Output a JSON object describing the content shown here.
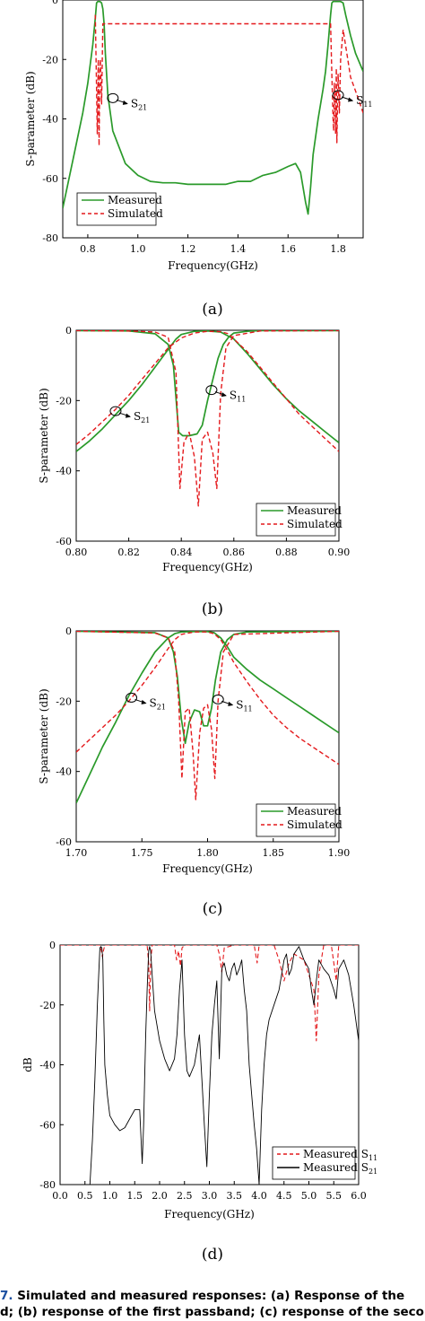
{
  "colors": {
    "measured": "#2a9a2a",
    "simulated": "#e4191c",
    "measured_d_s21": "#000000"
  },
  "panels": {
    "a": {
      "label": "(a)"
    },
    "b": {
      "label": "(b)"
    },
    "c": {
      "label": "(c)"
    },
    "d": {
      "label": "(d)"
    }
  },
  "caption": {
    "line1_num": "7.",
    "line1_text": " Simulated and measured responses: (a) Response of the",
    "line2": "d; (b) response of the first passband; (c) response of the secon"
  },
  "chart_data": [
    {
      "type": "line",
      "title": "",
      "xlabel": "Frequency(GHz)",
      "ylabel": "S-parameter (dB)",
      "xlim": [
        0.7,
        1.9
      ],
      "ylim": [
        -80,
        0
      ],
      "xticks": [
        "0.8",
        "1.0",
        "1.2",
        "1.4",
        "1.6",
        "1.8"
      ],
      "xtick_values": [
        0.8,
        1.0,
        1.2,
        1.4,
        1.6,
        1.8
      ],
      "yticks": [
        "0",
        "-20",
        "-40",
        "-60",
        "-80"
      ],
      "ytick_values": [
        0,
        -20,
        -40,
        -60,
        -80
      ],
      "legend": {
        "position": "bottom-left",
        "entries": [
          "Measured",
          "Simulated"
        ]
      },
      "annotations": [
        {
          "text": "S",
          "sub": "21",
          "x": 0.9,
          "y": -33
        },
        {
          "text": "S",
          "sub": "11",
          "x": 1.8,
          "y": -32
        }
      ],
      "series": [
        {
          "name": "Measured",
          "x": [
            0.7,
            0.72,
            0.75,
            0.78,
            0.8,
            0.82,
            0.83,
            0.835,
            0.84,
            0.845,
            0.85,
            0.855,
            0.86,
            0.865,
            0.87,
            0.88,
            0.9,
            0.95,
            1.0,
            1.05,
            1.1,
            1.15,
            1.2,
            1.25,
            1.3,
            1.35,
            1.4,
            1.45,
            1.5,
            1.55,
            1.6,
            1.63,
            1.65,
            1.67,
            1.68,
            1.69,
            1.7,
            1.72,
            1.74,
            1.75,
            1.76,
            1.77,
            1.775,
            1.78,
            1.79,
            1.8,
            1.805,
            1.81,
            1.82,
            1.83,
            1.85,
            1.87,
            1.9
          ],
          "y": [
            -70,
            -62,
            -50,
            -38,
            -28,
            -15,
            -6,
            -1,
            -0.5,
            -0.5,
            -0.6,
            -1,
            -3,
            -8,
            -18,
            -32,
            -44,
            -55,
            -59,
            -61,
            -61.5,
            -61.5,
            -62,
            -62,
            -62,
            -62,
            -61,
            -61,
            -59,
            -58,
            -56,
            -55,
            -58,
            -68,
            -72,
            -63,
            -52,
            -40,
            -30,
            -24,
            -15,
            -5,
            -1,
            -0.5,
            -0.5,
            -0.5,
            -0.5,
            -0.5,
            -1,
            -5,
            -12,
            -18,
            -24
          ]
        },
        {
          "name": "Simulated",
          "x": [
            0.83,
            0.835,
            0.838,
            0.84,
            0.842,
            0.845,
            0.848,
            0.85,
            0.855,
            0.86,
            1.77,
            1.775,
            1.78,
            1.782,
            1.785,
            1.79,
            1.793,
            1.795,
            1.8,
            1.805,
            1.81,
            1.82,
            1.85,
            1.88,
            1.9
          ],
          "y": [
            -5,
            -30,
            -45,
            -30,
            -20,
            -49,
            -25,
            -20,
            -35,
            -8,
            -8,
            -25,
            -40,
            -44,
            -28,
            -45,
            -23,
            -48,
            -25,
            -38,
            -20,
            -10,
            -26,
            -33,
            -38
          ]
        }
      ]
    },
    {
      "type": "line",
      "title": "",
      "xlabel": "Frequency(GHz)",
      "ylabel": "S-parameter (dB)",
      "xlim": [
        0.8,
        0.9
      ],
      "ylim": [
        -60,
        0
      ],
      "xticks": [
        "0.80",
        "0.82",
        "0.84",
        "0.86",
        "0.88",
        "0.90"
      ],
      "xtick_values": [
        0.8,
        0.82,
        0.84,
        0.86,
        0.88,
        0.9
      ],
      "yticks": [
        "0",
        "-20",
        "-40",
        "-60"
      ],
      "ytick_values": [
        0,
        -20,
        -40,
        -60
      ],
      "legend": {
        "position": "bottom-right",
        "entries": [
          "Measured",
          "Simulated"
        ]
      },
      "annotations": [
        {
          "text": "S",
          "sub": "21",
          "x": 0.815,
          "y": -23
        },
        {
          "text": "S",
          "sub": "11",
          "x": 0.8515,
          "y": -17
        }
      ],
      "series": [
        {
          "name": "Measured S21",
          "x": [
            0.8,
            0.805,
            0.81,
            0.815,
            0.82,
            0.825,
            0.83,
            0.835,
            0.838,
            0.84,
            0.845,
            0.85,
            0.855,
            0.86,
            0.865,
            0.87,
            0.875,
            0.88,
            0.885,
            0.89,
            0.895,
            0.9
          ],
          "y": [
            -34.5,
            -31.5,
            -28,
            -24,
            -20,
            -15.5,
            -10.5,
            -5.5,
            -2.5,
            -1.2,
            -0.3,
            -0.2,
            -0.5,
            -2.5,
            -6.5,
            -11,
            -15.5,
            -19.5,
            -23,
            -26,
            -29,
            -32
          ]
        },
        {
          "name": "Measured S11",
          "x": [
            0.8,
            0.82,
            0.83,
            0.835,
            0.837,
            0.839,
            0.8405,
            0.843,
            0.846,
            0.848,
            0.85,
            0.852,
            0.854,
            0.856,
            0.858,
            0.86,
            0.865,
            0.87,
            0.9
          ],
          "y": [
            -0.1,
            -0.2,
            -1,
            -4,
            -10,
            -29,
            -30,
            -30,
            -29.5,
            -27,
            -20,
            -14,
            -8,
            -4,
            -2,
            -0.8,
            -0.3,
            -0.1,
            -0.1
          ]
        },
        {
          "name": "Simulated S21",
          "x": [
            0.8,
            0.805,
            0.81,
            0.815,
            0.82,
            0.825,
            0.83,
            0.835,
            0.84,
            0.845,
            0.85,
            0.855,
            0.858,
            0.86,
            0.865,
            0.87,
            0.875,
            0.88,
            0.885,
            0.89,
            0.895,
            0.9
          ],
          "y": [
            -32.5,
            -29.5,
            -26,
            -22.5,
            -18.5,
            -14,
            -9.5,
            -5,
            -2.2,
            -0.8,
            -0.3,
            -0.4,
            -1,
            -2.5,
            -6,
            -10.5,
            -15,
            -19.5,
            -24,
            -27.5,
            -31,
            -34.5
          ]
        },
        {
          "name": "Simulated S11",
          "x": [
            0.8,
            0.82,
            0.83,
            0.835,
            0.838,
            0.8395,
            0.841,
            0.843,
            0.845,
            0.8465,
            0.848,
            0.85,
            0.852,
            0.8535,
            0.855,
            0.857,
            0.86,
            0.87,
            0.9
          ],
          "y": [
            -0.1,
            -0.2,
            -0.5,
            -2,
            -12,
            -45,
            -32,
            -29,
            -36,
            -50,
            -31,
            -29,
            -35,
            -45,
            -18,
            -5,
            -1.5,
            -0.2,
            -0.1
          ]
        }
      ]
    },
    {
      "type": "line",
      "title": "",
      "xlabel": "Frequency(GHz)",
      "ylabel": "S-parameter (dB)",
      "xlim": [
        1.7,
        1.9
      ],
      "ylim": [
        -60,
        0
      ],
      "xticks": [
        "1.70",
        "1.75",
        "1.80",
        "1.85",
        "1.90"
      ],
      "xtick_values": [
        1.7,
        1.75,
        1.8,
        1.85,
        1.9
      ],
      "yticks": [
        "0",
        "-20",
        "-40",
        "-60"
      ],
      "ytick_values": [
        0,
        -20,
        -40,
        -60
      ],
      "legend": {
        "position": "bottom-right",
        "entries": [
          "Measured",
          "Simulated"
        ]
      },
      "annotations": [
        {
          "text": "S",
          "sub": "21",
          "x": 1.742,
          "y": -19
        },
        {
          "text": "S",
          "sub": "11",
          "x": 1.808,
          "y": -19.5
        }
      ],
      "series": [
        {
          "name": "Measured S21",
          "x": [
            1.7,
            1.71,
            1.72,
            1.73,
            1.74,
            1.75,
            1.76,
            1.77,
            1.775,
            1.78,
            1.79,
            1.8,
            1.805,
            1.81,
            1.815,
            1.82,
            1.83,
            1.84,
            1.85,
            1.86,
            1.87,
            1.88,
            1.89,
            1.9
          ],
          "y": [
            -49,
            -41,
            -33,
            -26,
            -18.5,
            -12,
            -6,
            -2,
            -0.8,
            -0.3,
            -0.2,
            -0.2,
            -0.5,
            -2,
            -4.5,
            -7.5,
            -11,
            -14,
            -16.5,
            -19,
            -21.5,
            -24,
            -26.5,
            -29
          ]
        },
        {
          "name": "Measured S11",
          "x": [
            1.7,
            1.76,
            1.77,
            1.774,
            1.777,
            1.78,
            1.783,
            1.786,
            1.79,
            1.794,
            1.797,
            1.8,
            1.803,
            1.806,
            1.81,
            1.815,
            1.82,
            1.83,
            1.9
          ],
          "y": [
            -0.1,
            -0.5,
            -2,
            -6,
            -13,
            -25,
            -32,
            -26,
            -22.5,
            -23,
            -27,
            -27,
            -22,
            -14,
            -6,
            -2.5,
            -1,
            -0.3,
            -0.1
          ]
        },
        {
          "name": "Simulated S21",
          "x": [
            1.7,
            1.71,
            1.72,
            1.73,
            1.74,
            1.75,
            1.76,
            1.77,
            1.775,
            1.78,
            1.79,
            1.8,
            1.805,
            1.81,
            1.815,
            1.82,
            1.83,
            1.84,
            1.85,
            1.86,
            1.87,
            1.88,
            1.89,
            1.9
          ],
          "y": [
            -34.5,
            -31,
            -27.5,
            -24,
            -20,
            -15.5,
            -10.5,
            -5,
            -2.5,
            -1,
            -0.3,
            -0.3,
            -0.8,
            -2.5,
            -5.5,
            -9,
            -14.5,
            -19.5,
            -24,
            -27.5,
            -30.5,
            -33,
            -35.5,
            -38
          ]
        },
        {
          "name": "Simulated S11",
          "x": [
            1.7,
            1.76,
            1.77,
            1.775,
            1.778,
            1.7805,
            1.783,
            1.786,
            1.789,
            1.791,
            1.794,
            1.797,
            1.8,
            1.803,
            1.8055,
            1.808,
            1.812,
            1.82,
            1.9
          ],
          "y": [
            -0.1,
            -0.6,
            -2,
            -6,
            -20,
            -42,
            -23,
            -22,
            -35,
            -48,
            -29,
            -22,
            -21,
            -28,
            -42,
            -20,
            -6,
            -1,
            -0.1
          ]
        }
      ]
    },
    {
      "type": "line",
      "title": "",
      "xlabel": "Frequency(GHz)",
      "ylabel": "dB",
      "xlim": [
        0,
        6
      ],
      "ylim": [
        -80,
        0
      ],
      "xticks": [
        "0.0",
        "0.5",
        "1.0",
        "1.5",
        "2.0",
        "2.5",
        "3.0",
        "3.5",
        "4.0",
        "4.5",
        "5.0",
        "5.5",
        "6.0"
      ],
      "xtick_values": [
        0,
        0.5,
        1,
        1.5,
        2,
        2.5,
        3,
        3.5,
        4,
        4.5,
        5,
        5.5,
        6
      ],
      "yticks": [
        "0",
        "-20",
        "-40",
        "-60",
        "-80"
      ],
      "ytick_values": [
        0,
        -20,
        -40,
        -60,
        -80
      ],
      "legend": {
        "position": "bottom-right",
        "entries": [
          {
            "name": "Measured S",
            "sub": "11"
          },
          {
            "name": "Measured S",
            "sub": "21"
          }
        ]
      },
      "series": [
        {
          "name": "Measured S11",
          "x": [
            0,
            0.8,
            0.83,
            0.85,
            0.87,
            0.9,
            1.75,
            1.78,
            1.8,
            1.82,
            1.85,
            2.3,
            2.34,
            2.38,
            2.42,
            2.45,
            2.5,
            3.15,
            3.2,
            3.25,
            3.3,
            3.5,
            3.9,
            3.93,
            3.96,
            4.0,
            4.3,
            4.4,
            4.5,
            4.6,
            4.7,
            4.9,
            5.1,
            5.15,
            5.2,
            5.3,
            5.45,
            5.5,
            5.55,
            5.6,
            6.0
          ],
          "y": [
            0,
            0,
            -2,
            -4,
            -2,
            0,
            0,
            -6,
            -22,
            -6,
            0,
            0,
            -5,
            -2,
            -7,
            -1,
            0,
            0,
            -3,
            -9,
            -1,
            0,
            0,
            -3,
            -6,
            0,
            0,
            -5,
            -12,
            -6,
            -3,
            -5,
            -15,
            -32,
            -10,
            0,
            0,
            -6,
            -12,
            0,
            0
          ]
        },
        {
          "name": "Measured S21",
          "x": [
            0.6,
            0.65,
            0.7,
            0.75,
            0.8,
            0.82,
            0.84,
            0.86,
            0.88,
            0.9,
            0.95,
            1.0,
            1.1,
            1.2,
            1.3,
            1.4,
            1.5,
            1.6,
            1.65,
            1.68,
            1.7,
            1.72,
            1.75,
            1.78,
            1.8,
            1.82,
            1.85,
            1.9,
            2.0,
            2.1,
            2.2,
            2.3,
            2.35,
            2.4,
            2.45,
            2.5,
            2.55,
            2.6,
            2.7,
            2.8,
            2.85,
            2.9,
            2.95,
            3.0,
            3.05,
            3.1,
            3.15,
            3.2,
            3.25,
            3.3,
            3.35,
            3.4,
            3.45,
            3.5,
            3.55,
            3.6,
            3.65,
            3.7,
            3.75,
            3.8,
            3.85,
            3.9,
            3.95,
            4.0,
            4.05,
            4.1,
            4.15,
            4.2,
            4.3,
            4.4,
            4.5,
            4.55,
            4.6,
            4.65,
            4.7,
            4.8,
            4.9,
            5.0,
            5.05,
            5.1,
            5.15,
            5.2,
            5.3,
            5.4,
            5.5,
            5.55,
            5.6,
            5.7,
            5.8,
            5.9,
            6.0
          ],
          "y": [
            -80,
            -65,
            -45,
            -20,
            -1,
            -0.5,
            -1,
            -5,
            -25,
            -40,
            -50,
            -57,
            -60,
            -62,
            -61,
            -58,
            -55,
            -55,
            -73,
            -60,
            -45,
            -30,
            -15,
            -2,
            -0.5,
            -2,
            -10,
            -22,
            -32,
            -38,
            -42,
            -38,
            -30,
            -15,
            -5,
            -30,
            -42,
            -44,
            -40,
            -30,
            -45,
            -60,
            -74,
            -50,
            -30,
            -20,
            -12,
            -38,
            -8,
            -6,
            -10,
            -12,
            -8,
            -6,
            -10,
            -8,
            -5,
            -15,
            -22,
            -40,
            -50,
            -60,
            -68,
            -80,
            -55,
            -40,
            -30,
            -25,
            -20,
            -15,
            -5,
            -3,
            -10,
            -8,
            -3,
            -0.5,
            -5,
            -8,
            -15,
            -20,
            -12,
            -5,
            -8,
            -10,
            -15,
            -18,
            -8,
            -5,
            -10,
            -20,
            -32
          ]
        }
      ]
    }
  ]
}
